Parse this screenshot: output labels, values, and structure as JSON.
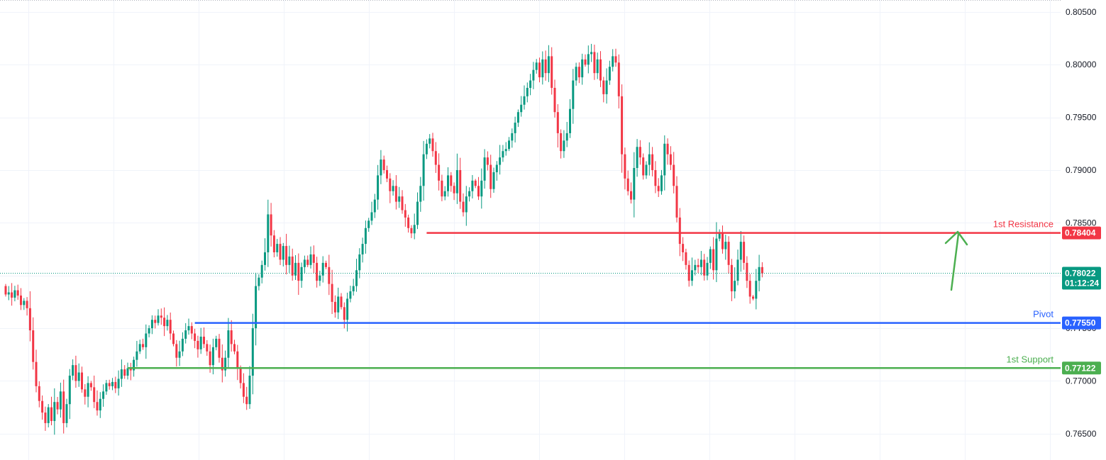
{
  "chart_data": {
    "type": "candlestick",
    "y_axis": {
      "position": "right",
      "ylim": [
        0.7625,
        0.806
      ],
      "ticks": [
        "0.76500",
        "0.77000",
        "0.77500",
        "0.78000",
        "0.78500",
        "0.79000",
        "0.79500",
        "0.80000",
        "0.80500"
      ],
      "grid": true
    },
    "x_axis": {
      "labels_visible": false,
      "grid": true
    },
    "current_price": {
      "value": 0.78022,
      "label": "0.78022",
      "countdown": "01:12:24",
      "color": "#089981"
    },
    "levels": [
      {
        "name": "1st Resistance",
        "value": 0.78404,
        "label": "0.78404",
        "color": "#f23645",
        "start_index": 138
      },
      {
        "name": "Pivot",
        "value": 0.7755,
        "label": "0.77550",
        "color": "#2962ff",
        "start_index": 62
      },
      {
        "name": "1st Support",
        "value": 0.77122,
        "label": "0.77122",
        "color": "#4caf50",
        "start_index": 40
      }
    ],
    "annotation": {
      "type": "arrow",
      "direction": "up",
      "color": "#4caf50"
    },
    "colors": {
      "up": "#089981",
      "down": "#f23645"
    },
    "series_close": [
      0.7782,
      0.7784,
      0.7779,
      0.7786,
      0.7781,
      0.7772,
      0.7776,
      0.7769,
      0.7748,
      0.7718,
      0.7695,
      0.7681,
      0.767,
      0.766,
      0.7675,
      0.7662,
      0.768,
      0.7673,
      0.769,
      0.766,
      0.7678,
      0.7705,
      0.7715,
      0.77,
      0.7708,
      0.7692,
      0.7685,
      0.7698,
      0.7694,
      0.768,
      0.7672,
      0.7683,
      0.769,
      0.7698,
      0.7695,
      0.7699,
      0.7693,
      0.7702,
      0.7711,
      0.7705,
      0.7712,
      0.771,
      0.772,
      0.7728,
      0.7735,
      0.7732,
      0.7745,
      0.775,
      0.7758,
      0.7755,
      0.7762,
      0.776,
      0.7752,
      0.7758,
      0.7745,
      0.7735,
      0.7722,
      0.7728,
      0.774,
      0.7748,
      0.7752,
      0.7745,
      0.7738,
      0.773,
      0.7742,
      0.7735,
      0.7728,
      0.7715,
      0.7732,
      0.774,
      0.7722,
      0.771,
      0.7722,
      0.7748,
      0.7735,
      0.7728,
      0.7712,
      0.7698,
      0.7685,
      0.7678,
      0.7705,
      0.775,
      0.779,
      0.7798,
      0.781,
      0.7822,
      0.7858,
      0.7838,
      0.7822,
      0.783,
      0.7815,
      0.7828,
      0.781,
      0.7818,
      0.78,
      0.7812,
      0.7795,
      0.7808,
      0.7815,
      0.781,
      0.782,
      0.7812,
      0.7795,
      0.78,
      0.7812,
      0.7808,
      0.7792,
      0.7775,
      0.7765,
      0.778,
      0.777,
      0.7758,
      0.7778,
      0.7785,
      0.779,
      0.7805,
      0.782,
      0.783,
      0.7845,
      0.7852,
      0.786,
      0.7872,
      0.7895,
      0.791,
      0.79,
      0.7892,
      0.788,
      0.7885,
      0.787,
      0.7875,
      0.7862,
      0.7855,
      0.7845,
      0.784,
      0.7848,
      0.787,
      0.7885,
      0.7915,
      0.7925,
      0.793,
      0.7918,
      0.7905,
      0.789,
      0.7875,
      0.788,
      0.7895,
      0.7885,
      0.7878,
      0.79,
      0.787,
      0.786,
      0.7875,
      0.788,
      0.789,
      0.7885,
      0.7875,
      0.789,
      0.7912,
      0.7905,
      0.7882,
      0.7898,
      0.7905,
      0.7912,
      0.7918,
      0.792,
      0.7928,
      0.7935,
      0.7945,
      0.7955,
      0.7962,
      0.797,
      0.7978,
      0.7985,
      0.7995,
      0.8002,
      0.7988,
      0.8005,
      0.7992,
      0.8008,
      0.7978,
      0.7955,
      0.7935,
      0.7918,
      0.7928,
      0.7935,
      0.7958,
      0.7985,
      0.7998,
      0.7988,
      0.8005,
      0.8,
      0.801,
      0.8012,
      0.7992,
      0.8005,
      0.7985,
      0.7972,
      0.7985,
      0.7998,
      0.8008,
      0.8002,
      0.797,
      0.7915,
      0.7892,
      0.788,
      0.7872,
      0.7902,
      0.7922,
      0.7912,
      0.7895,
      0.7905,
      0.7915,
      0.79,
      0.7885,
      0.788,
      0.7895,
      0.7925,
      0.7915,
      0.7905,
      0.7885,
      0.7855,
      0.783,
      0.7822,
      0.781,
      0.7795,
      0.7805,
      0.781,
      0.7808,
      0.7815,
      0.78,
      0.7812,
      0.7825,
      0.7805,
      0.7835,
      0.784,
      0.7825,
      0.7832,
      0.781,
      0.7785,
      0.7795,
      0.7815,
      0.7832,
      0.7812,
      0.7795,
      0.778,
      0.7778,
      0.7795,
      0.7808,
      0.7802
    ]
  }
}
